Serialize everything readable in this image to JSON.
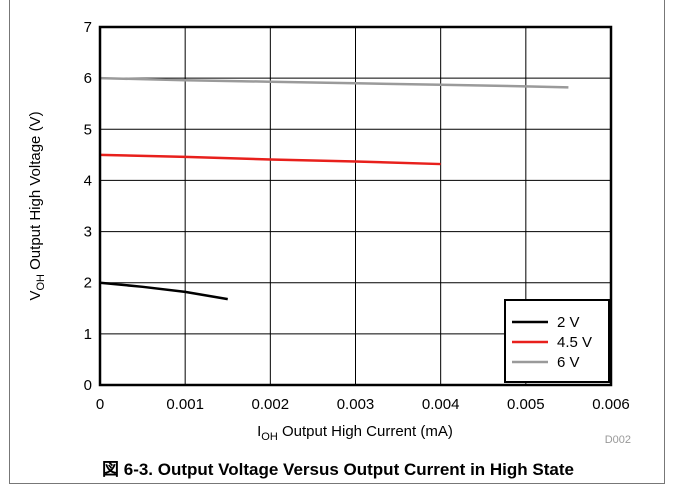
{
  "chart_data": {
    "type": "line",
    "xlabel_main": "I",
    "xlabel_sub": "OH",
    "xlabel_rest": " Output High Current (mA)",
    "ylabel_main": "V",
    "ylabel_sub": "OH",
    "ylabel_rest": " Output High Voltage (V)",
    "xlim": [
      0,
      0.006
    ],
    "ylim": [
      0,
      7
    ],
    "x_ticks": [
      "0",
      "0.001",
      "0.002",
      "0.003",
      "0.004",
      "0.005",
      "0.006"
    ],
    "y_ticks": [
      "0",
      "1",
      "2",
      "3",
      "4",
      "5",
      "6",
      "7"
    ],
    "grid": true,
    "legend_position": "bottom-right",
    "series": [
      {
        "name": "2 V",
        "color": "#000000",
        "x": [
          0,
          0.0005,
          0.001,
          0.0015
        ],
        "y": [
          2.0,
          1.92,
          1.82,
          1.68
        ]
      },
      {
        "name": "4.5 V",
        "color": "#e8201c",
        "x": [
          0,
          0.001,
          0.002,
          0.003,
          0.004
        ],
        "y": [
          4.5,
          4.46,
          4.41,
          4.37,
          4.32
        ]
      },
      {
        "name": "6 V",
        "color": "#9a9a9a",
        "x": [
          0,
          0.001,
          0.002,
          0.003,
          0.004,
          0.005,
          0.0055
        ],
        "y": [
          6.0,
          5.96,
          5.93,
          5.9,
          5.87,
          5.84,
          5.82
        ]
      }
    ],
    "code": "D002"
  },
  "caption": "図 6-3. Output Voltage Versus Output Current in High State"
}
